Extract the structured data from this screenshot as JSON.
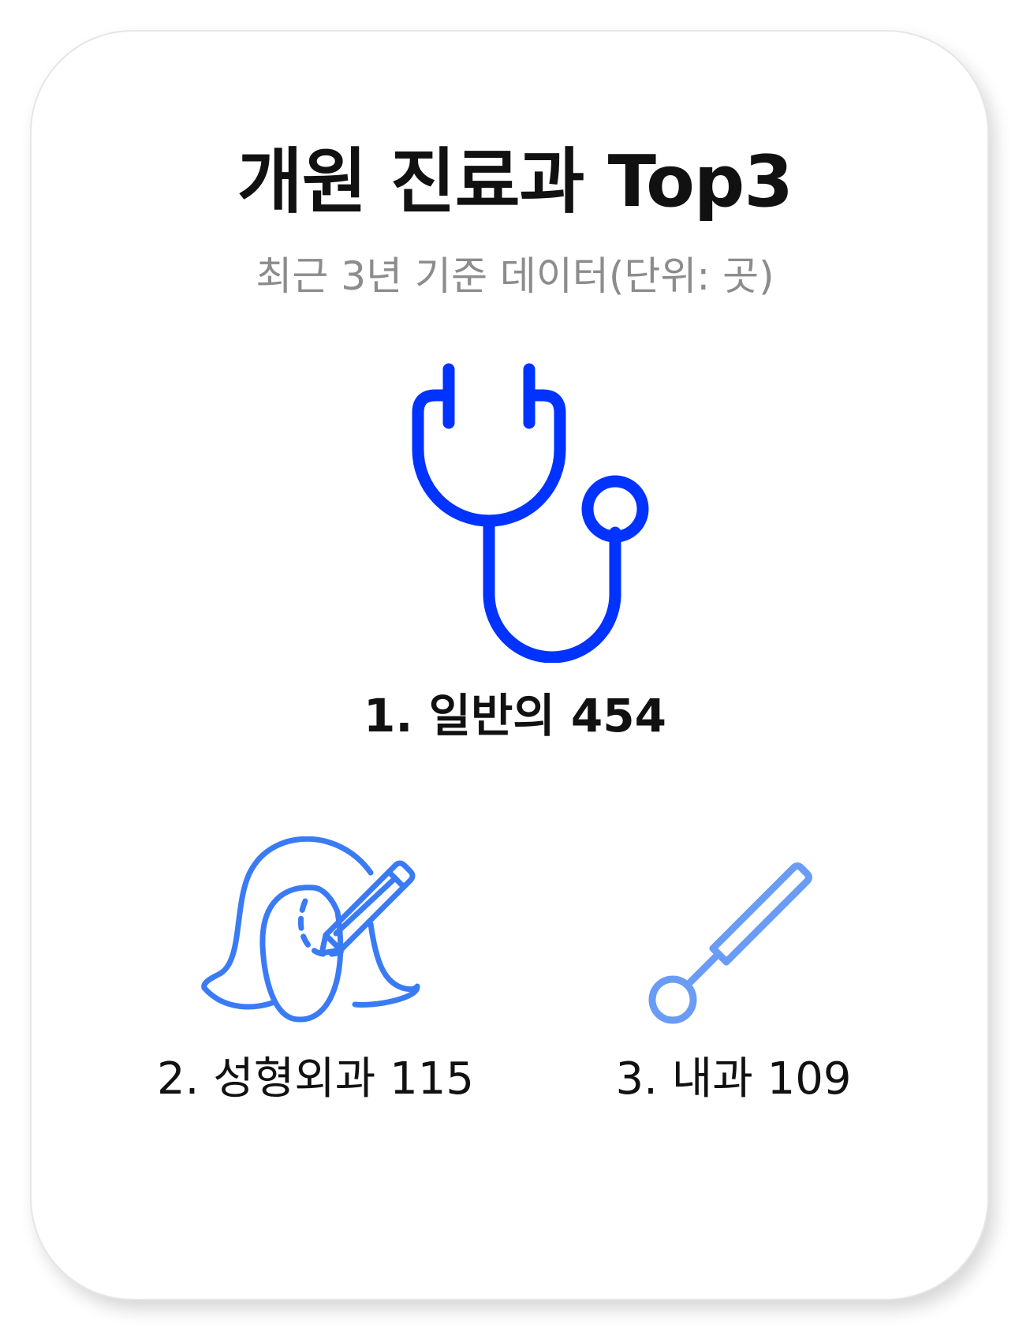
{
  "title": "개원 진료과 Top3",
  "subtitle": "최근 3년 기준 데이터(단위: 곳)",
  "colors": {
    "primary": "#0033ff",
    "secondary": "#3a7bf5",
    "tertiary": "#6a9cf5"
  },
  "ranks": [
    {
      "label": "1. 일반의 454",
      "icon": "stethoscope-icon"
    },
    {
      "label": "2. 성형외과 115",
      "icon": "face-pen-icon"
    },
    {
      "label": "3. 내과 109",
      "icon": "reflex-mirror-icon"
    }
  ]
}
